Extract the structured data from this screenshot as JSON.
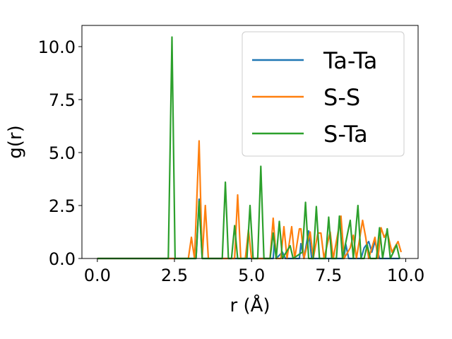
{
  "chart_data": {
    "type": "line",
    "xlabel": "r (Å)",
    "ylabel": "g(r)",
    "xlim": [
      -0.5,
      10.4
    ],
    "ylim": [
      0,
      11
    ],
    "xticks": [
      0,
      2.5,
      5,
      7.5,
      10
    ],
    "yticks": [
      0,
      2.5,
      5,
      7.5,
      10
    ],
    "xtick_labels": [
      "0.0",
      "2.5",
      "5.0",
      "7.5",
      "10.0"
    ],
    "ytick_labels": [
      "0.0",
      "2.5",
      "5.0",
      "7.5",
      "10.0"
    ],
    "grid": false,
    "legend_position": "top-right",
    "series": [
      {
        "name": "Ta-Ta",
        "color": "#1f77b4",
        "points": [
          [
            0,
            0
          ],
          [
            3.2,
            0
          ],
          [
            3.3,
            2.8
          ],
          [
            3.4,
            0
          ],
          [
            5.7,
            0
          ],
          [
            5.75,
            0.95
          ],
          [
            5.8,
            0
          ],
          [
            6.0,
            0.3
          ],
          [
            6.1,
            0
          ],
          [
            6.55,
            0
          ],
          [
            6.6,
            0.7
          ],
          [
            6.7,
            0
          ],
          [
            6.85,
            1.3
          ],
          [
            6.95,
            0
          ],
          [
            8.0,
            0
          ],
          [
            8.05,
            0.7
          ],
          [
            8.15,
            0
          ],
          [
            8.55,
            0
          ],
          [
            8.65,
            0.5
          ],
          [
            8.8,
            0.8
          ],
          [
            8.9,
            0.3
          ],
          [
            9.0,
            0.8
          ],
          [
            9.15,
            0
          ],
          [
            9.8,
            0
          ]
        ]
      },
      {
        "name": "S-S",
        "color": "#ff7f0e",
        "points": [
          [
            0,
            0
          ],
          [
            2.95,
            0
          ],
          [
            3.05,
            1.0
          ],
          [
            3.15,
            0
          ],
          [
            3.3,
            5.55
          ],
          [
            3.4,
            0
          ],
          [
            3.5,
            2.5
          ],
          [
            3.6,
            0
          ],
          [
            4.45,
            0
          ],
          [
            4.55,
            3.0
          ],
          [
            4.65,
            0
          ],
          [
            4.8,
            0
          ],
          [
            4.9,
            1.35
          ],
          [
            5.0,
            0
          ],
          [
            5.6,
            0
          ],
          [
            5.7,
            1.9
          ],
          [
            5.8,
            0
          ],
          [
            5.95,
            0
          ],
          [
            6.05,
            1.5
          ],
          [
            6.15,
            0
          ],
          [
            6.3,
            1.5
          ],
          [
            6.4,
            0
          ],
          [
            6.55,
            1.4
          ],
          [
            6.6,
            1.4
          ],
          [
            6.7,
            0
          ],
          [
            6.9,
            1.25
          ],
          [
            7.0,
            0
          ],
          [
            7.15,
            1.2
          ],
          [
            7.25,
            1.2
          ],
          [
            7.35,
            0
          ],
          [
            7.55,
            1.25
          ],
          [
            7.65,
            0
          ],
          [
            7.9,
            2.0
          ],
          [
            8.0,
            0
          ],
          [
            8.2,
            0.5
          ],
          [
            8.3,
            1.1
          ],
          [
            8.4,
            0
          ],
          [
            8.6,
            1.8
          ],
          [
            8.7,
            1.0
          ],
          [
            8.8,
            0
          ],
          [
            9.0,
            1.0
          ],
          [
            9.1,
            0
          ],
          [
            9.2,
            1.45
          ],
          [
            9.3,
            1.0
          ],
          [
            9.4,
            1.25
          ],
          [
            9.55,
            0.3
          ],
          [
            9.65,
            0.55
          ],
          [
            9.75,
            0.8
          ],
          [
            9.85,
            0.3
          ]
        ]
      },
      {
        "name": "S-Ta",
        "color": "#2ca02c",
        "points": [
          [
            0,
            0
          ],
          [
            2.3,
            0
          ],
          [
            2.42,
            10.45
          ],
          [
            2.52,
            0
          ],
          [
            3.2,
            0
          ],
          [
            3.3,
            2.7
          ],
          [
            3.4,
            0
          ],
          [
            4.05,
            0
          ],
          [
            4.15,
            3.6
          ],
          [
            4.25,
            0
          ],
          [
            4.35,
            0
          ],
          [
            4.45,
            1.55
          ],
          [
            4.55,
            0
          ],
          [
            4.85,
            0
          ],
          [
            4.95,
            2.5
          ],
          [
            5.05,
            0
          ],
          [
            5.2,
            0
          ],
          [
            5.3,
            4.35
          ],
          [
            5.4,
            0
          ],
          [
            5.6,
            0
          ],
          [
            5.7,
            1.2
          ],
          [
            5.8,
            0
          ],
          [
            5.9,
            1.75
          ],
          [
            6.0,
            0
          ],
          [
            6.25,
            0.6
          ],
          [
            6.35,
            0
          ],
          [
            6.65,
            0.3
          ],
          [
            6.75,
            2.65
          ],
          [
            6.85,
            0
          ],
          [
            7.0,
            0
          ],
          [
            7.1,
            2.45
          ],
          [
            7.2,
            0
          ],
          [
            7.4,
            0
          ],
          [
            7.5,
            1.95
          ],
          [
            7.6,
            0
          ],
          [
            7.75,
            0
          ],
          [
            7.85,
            2.0
          ],
          [
            7.95,
            0
          ],
          [
            8.2,
            1.8
          ],
          [
            8.3,
            0
          ],
          [
            8.45,
            2.5
          ],
          [
            8.55,
            0
          ],
          [
            8.65,
            0
          ],
          [
            8.75,
            0.65
          ],
          [
            8.85,
            0
          ],
          [
            9.05,
            0
          ],
          [
            9.15,
            1.45
          ],
          [
            9.25,
            0
          ],
          [
            9.4,
            1.4
          ],
          [
            9.5,
            0
          ],
          [
            9.6,
            0.3
          ],
          [
            9.7,
            0.65
          ],
          [
            9.8,
            0
          ]
        ]
      }
    ]
  }
}
